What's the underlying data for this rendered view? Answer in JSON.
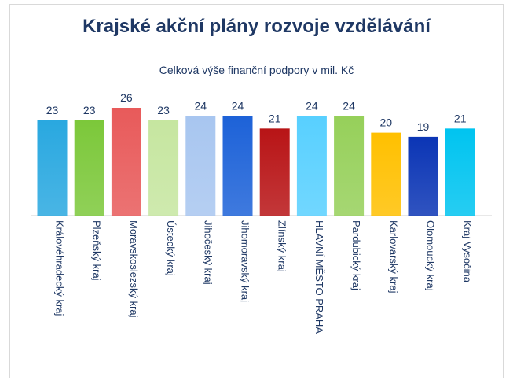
{
  "chart_data": {
    "type": "bar",
    "title": "Krajské akční plány rozvoje vzdělávání",
    "subtitle": "Celková výše finanční podpory v mil. Kč",
    "categories": [
      "Královéhradecký kraj",
      "Plzeňský kraj",
      "Moravskoslezský kraj",
      "Ústecký kraj",
      "Jihočeský kraj",
      "Jihomoravský kraj",
      "Zlínský kraj",
      "HLAVNÍ MĚSTO PRAHA",
      "Pardubický kraj",
      "Karlovarský kraj",
      "Olomoucký kraj",
      "Kraj Vysočina"
    ],
    "values": [
      23,
      23,
      26,
      23,
      24,
      24,
      21,
      24,
      24,
      20,
      19,
      21
    ],
    "colors": [
      "#29a8e0",
      "#7cc83a",
      "#e85a5a",
      "#c6e6a0",
      "#a8c6f0",
      "#1d62d8",
      "#b81416",
      "#58d0ff",
      "#96d05a",
      "#ffc000",
      "#0b35b5",
      "#00c4f0"
    ],
    "ylim": [
      0,
      26
    ],
    "grid": false,
    "legend": "none"
  }
}
